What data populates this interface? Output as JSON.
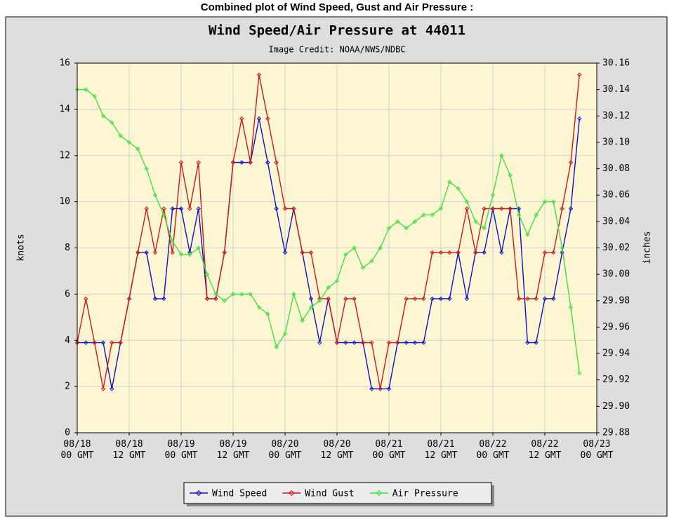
{
  "heading": "Combined plot of Wind Speed, Gust and Air Pressure :",
  "chart_data": {
    "type": "line",
    "title": "Wind Speed/Air Pressure at 44011",
    "subtitle": "Image Credit: NOAA/NWS/NDBC",
    "y_label": "knots",
    "y2_label": "inches",
    "x": [
      0,
      2,
      4,
      6,
      8,
      10,
      12,
      14,
      16,
      18,
      20,
      22,
      24,
      26,
      28,
      30,
      32,
      34,
      36,
      38,
      40,
      42,
      44,
      46,
      48,
      50,
      52,
      54,
      56,
      58,
      60,
      62,
      64,
      66,
      68,
      70,
      72,
      74,
      76,
      78,
      80,
      82,
      84,
      86,
      88,
      90,
      92,
      94,
      96,
      98,
      100,
      102,
      104,
      106,
      108,
      110,
      112,
      114,
      116
    ],
    "xlim": [
      0,
      120
    ],
    "xticks": [
      {
        "value": 0,
        "label": "08/18\n00 GMT"
      },
      {
        "value": 12,
        "label": "08/18\n12 GMT"
      },
      {
        "value": 24,
        "label": "08/19\n00 GMT"
      },
      {
        "value": 36,
        "label": "08/19\n12 GMT"
      },
      {
        "value": 48,
        "label": "08/20\n00 GMT"
      },
      {
        "value": 60,
        "label": "08/20\n12 GMT"
      },
      {
        "value": 72,
        "label": "08/21\n00 GMT"
      },
      {
        "value": 84,
        "label": "08/21\n12 GMT"
      },
      {
        "value": 96,
        "label": "08/22\n00 GMT"
      },
      {
        "value": 108,
        "label": "08/22\n12 GMT"
      },
      {
        "value": 120,
        "label": "08/23\n00 GMT"
      }
    ],
    "ylim": [
      0,
      16
    ],
    "yticks": [
      0,
      2,
      4,
      6,
      8,
      10,
      12,
      14,
      16
    ],
    "y2lim": [
      29.88,
      30.16
    ],
    "y2ticks": [
      29.88,
      {
        "value": 29.9,
        "label": "29.90"
      },
      29.92,
      29.94,
      29.96,
      29.98,
      {
        "value": 30.0,
        "label": "30.00"
      },
      30.02,
      30.04,
      30.06,
      30.08,
      {
        "value": 30.1,
        "label": "30.10"
      },
      30.12,
      30.14,
      30.16
    ],
    "grid": true,
    "legend": "bottom",
    "series": [
      {
        "name": "Wind Speed",
        "color": "#1010c8",
        "values": [
          3.9,
          3.9,
          3.9,
          3.9,
          1.9,
          3.9,
          5.8,
          7.8,
          7.8,
          5.8,
          5.8,
          9.7,
          9.7,
          7.8,
          9.7,
          5.8,
          5.8,
          7.8,
          11.7,
          11.7,
          11.7,
          13.6,
          11.7,
          9.7,
          7.8,
          9.7,
          7.8,
          5.8,
          3.9,
          5.8,
          3.9,
          3.9,
          3.9,
          3.9,
          1.9,
          1.9,
          1.9,
          3.9,
          3.9,
          3.9,
          3.9,
          5.8,
          5.8,
          5.8,
          7.8,
          5.8,
          7.8,
          7.8,
          9.7,
          7.8,
          9.7,
          9.7,
          3.9,
          3.9,
          5.8,
          5.8,
          7.8,
          9.7,
          13.6
        ]
      },
      {
        "name": "Wind Gust",
        "color": "#d01818",
        "values": [
          3.9,
          5.8,
          3.9,
          1.9,
          3.9,
          3.9,
          5.8,
          7.8,
          9.7,
          7.8,
          9.7,
          7.8,
          11.7,
          9.7,
          11.7,
          5.8,
          5.8,
          7.8,
          11.7,
          13.6,
          11.7,
          15.5,
          13.6,
          11.7,
          9.7,
          9.7,
          7.8,
          7.8,
          5.8,
          5.8,
          3.9,
          5.8,
          5.8,
          3.9,
          3.9,
          1.9,
          3.9,
          3.9,
          5.8,
          5.8,
          5.8,
          7.8,
          7.8,
          7.8,
          7.8,
          9.7,
          7.8,
          9.7,
          9.7,
          9.7,
          9.7,
          5.8,
          5.8,
          5.8,
          7.8,
          7.8,
          9.7,
          11.7,
          15.5
        ]
      },
      {
        "name": "Air Pressure",
        "color": "#40e040",
        "axis": "y2",
        "values": [
          30.14,
          30.14,
          30.135,
          30.12,
          30.115,
          30.105,
          30.1,
          30.095,
          30.08,
          30.06,
          30.045,
          30.025,
          30.015,
          30.015,
          30.02,
          30.0,
          29.985,
          29.98,
          29.985,
          29.985,
          29.985,
          29.975,
          29.97,
          29.945,
          29.955,
          29.985,
          29.965,
          29.975,
          29.98,
          29.99,
          29.995,
          30.015,
          30.02,
          30.005,
          30.01,
          30.02,
          30.035,
          30.04,
          30.035,
          30.04,
          30.045,
          30.045,
          30.05,
          30.07,
          30.065,
          30.055,
          30.04,
          30.035,
          30.06,
          30.09,
          30.075,
          30.045,
          30.03,
          30.045,
          30.055,
          30.055,
          30.02,
          29.975,
          29.925
        ]
      }
    ]
  }
}
